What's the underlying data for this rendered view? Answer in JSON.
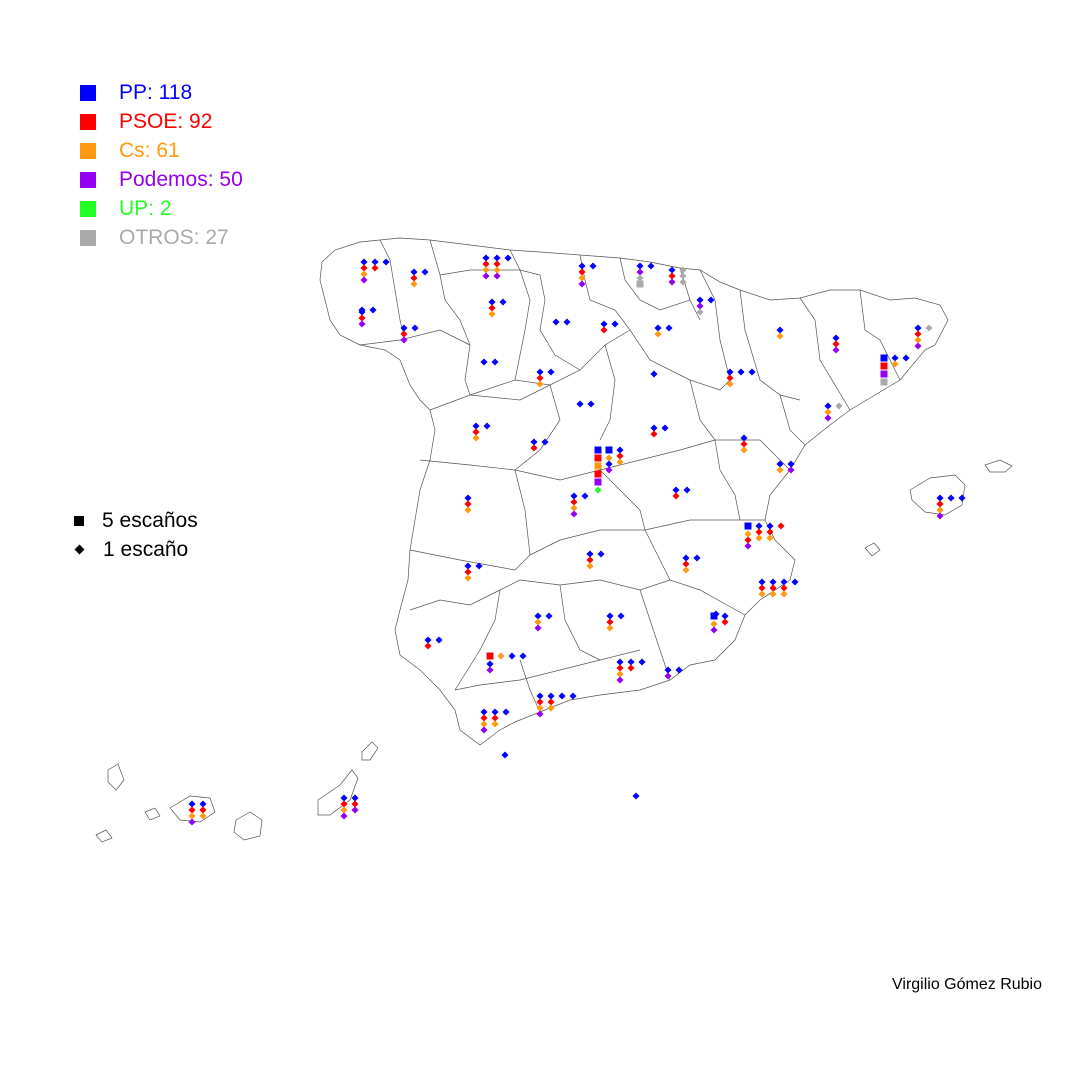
{
  "legend": {
    "parties": [
      {
        "key": "PP",
        "label": "PP: 118",
        "color": "#0000ff"
      },
      {
        "key": "PSOE",
        "label": "PSOE: 92",
        "color": "#ff0000"
      },
      {
        "key": "Cs",
        "label": "Cs: 61",
        "color": "#ff9a10"
      },
      {
        "key": "Podemos",
        "label": "Podemos: 50",
        "color": "#9400f0"
      },
      {
        "key": "UP",
        "label": "UP: 2",
        "color": "#22ff22"
      },
      {
        "key": "OTROS",
        "label": "OTROS: 27",
        "color": "#aaaaaa"
      }
    ],
    "sizes": [
      {
        "label": "5 escaños",
        "symbol": "square"
      },
      {
        "label": "1 escaño",
        "symbol": "diamond"
      }
    ]
  },
  "author": "Virgilio Gómez Rubio",
  "map": {
    "region": "Spain provinces",
    "symbols": "seat markers per province"
  }
}
